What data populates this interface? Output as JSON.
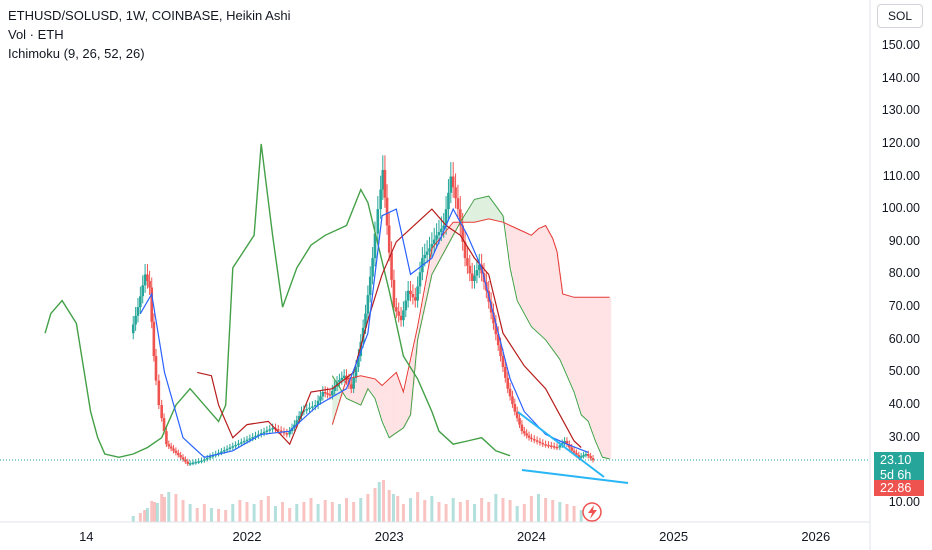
{
  "legend": {
    "title": "ETHUSD/SOLUSD, 1W, COINBASE, Heikin Ashi",
    "vol": "Vol · ETH",
    "ichimoku": "Ichimoku (9, 26, 52, 26)"
  },
  "symbol_button": "SOL",
  "price_tag": {
    "price": "23.10",
    "countdown": "5d 6h",
    "low": "22.86"
  },
  "colors": {
    "up": "#26a69a",
    "down": "#ef5350",
    "conversion": "#2962ff",
    "base": "#b71c1c",
    "lagging": "#43a047",
    "lead_a": "#43a047",
    "lead_b": "#e53935",
    "trend": "#29b6f6",
    "tag_green": "#26a69a",
    "tag_red": "#ef5350"
  },
  "chart_data": {
    "type": "candlestick",
    "y_ticks": [
      "10.00",
      "20.00",
      "30.00",
      "40.00",
      "50.00",
      "60.00",
      "70.00",
      "80.00",
      "90.00",
      "100.00",
      "110.00",
      "120.00",
      "130.00",
      "140.00",
      "150.00"
    ],
    "x_ticks": [
      "14",
      "2022",
      "2023",
      "2024",
      "2025",
      "2026"
    ],
    "ylim": [
      6,
      157
    ],
    "close_path": [
      [
        2021.2,
        62
      ],
      [
        2021.25,
        70
      ],
      [
        2021.3,
        80
      ],
      [
        2021.33,
        76
      ],
      [
        2021.36,
        55
      ],
      [
        2021.4,
        40
      ],
      [
        2021.45,
        28
      ],
      [
        2021.5,
        26
      ],
      [
        2021.55,
        24
      ],
      [
        2021.6,
        22
      ],
      [
        2021.7,
        23
      ],
      [
        2021.8,
        25
      ],
      [
        2021.9,
        27
      ],
      [
        2022.0,
        29
      ],
      [
        2022.1,
        31
      ],
      [
        2022.2,
        33
      ],
      [
        2022.3,
        31
      ],
      [
        2022.35,
        34
      ],
      [
        2022.4,
        38
      ],
      [
        2022.5,
        40
      ],
      [
        2022.55,
        44
      ],
      [
        2022.6,
        43
      ],
      [
        2022.65,
        47
      ],
      [
        2022.7,
        49
      ],
      [
        2022.75,
        45
      ],
      [
        2022.8,
        55
      ],
      [
        2022.85,
        68
      ],
      [
        2022.9,
        85
      ],
      [
        2022.94,
        100
      ],
      [
        2022.97,
        112
      ],
      [
        2023.0,
        95
      ],
      [
        2023.05,
        70
      ],
      [
        2023.1,
        66
      ],
      [
        2023.15,
        75
      ],
      [
        2023.2,
        72
      ],
      [
        2023.25,
        85
      ],
      [
        2023.3,
        88
      ],
      [
        2023.35,
        92
      ],
      [
        2023.4,
        95
      ],
      [
        2023.45,
        110
      ],
      [
        2023.5,
        100
      ],
      [
        2023.55,
        85
      ],
      [
        2023.6,
        78
      ],
      [
        2023.65,
        83
      ],
      [
        2023.7,
        75
      ],
      [
        2023.75,
        65
      ],
      [
        2023.8,
        55
      ],
      [
        2023.85,
        45
      ],
      [
        2023.9,
        38
      ],
      [
        2023.95,
        32
      ],
      [
        2024.0,
        30
      ],
      [
        2024.1,
        28
      ],
      [
        2024.2,
        27
      ],
      [
        2024.25,
        29
      ],
      [
        2024.3,
        26
      ],
      [
        2024.35,
        24
      ],
      [
        2024.4,
        25
      ],
      [
        2024.45,
        23.1
      ]
    ],
    "conversion_line": [
      [
        2021.25,
        68
      ],
      [
        2021.33,
        74
      ],
      [
        2021.42,
        50
      ],
      [
        2021.55,
        30
      ],
      [
        2021.7,
        24
      ],
      [
        2021.9,
        26
      ],
      [
        2022.1,
        31
      ],
      [
        2022.3,
        32
      ],
      [
        2022.5,
        40
      ],
      [
        2022.7,
        45
      ],
      [
        2022.85,
        62
      ],
      [
        2022.95,
        98
      ],
      [
        2023.05,
        100
      ],
      [
        2023.15,
        80
      ],
      [
        2023.3,
        85
      ],
      [
        2023.45,
        100
      ],
      [
        2023.55,
        92
      ],
      [
        2023.65,
        82
      ],
      [
        2023.75,
        65
      ],
      [
        2023.85,
        48
      ],
      [
        2023.95,
        38
      ],
      [
        2024.1,
        31
      ],
      [
        2024.25,
        28
      ],
      [
        2024.4,
        25.5
      ]
    ],
    "base_line": [
      [
        2021.65,
        50
      ],
      [
        2021.75,
        49
      ],
      [
        2021.8,
        40
      ],
      [
        2021.9,
        30
      ],
      [
        2022.0,
        34
      ],
      [
        2022.15,
        35
      ],
      [
        2022.3,
        28
      ],
      [
        2022.45,
        44
      ],
      [
        2022.6,
        45
      ],
      [
        2022.75,
        50
      ],
      [
        2022.85,
        66
      ],
      [
        2022.95,
        80
      ],
      [
        2023.05,
        90
      ],
      [
        2023.2,
        96
      ],
      [
        2023.3,
        100
      ],
      [
        2023.4,
        95
      ],
      [
        2023.5,
        92
      ],
      [
        2023.6,
        85
      ],
      [
        2023.7,
        80
      ],
      [
        2023.8,
        62
      ],
      [
        2023.95,
        52
      ],
      [
        2024.1,
        45
      ],
      [
        2024.2,
        37
      ],
      [
        2024.3,
        29
      ],
      [
        2024.35,
        27
      ]
    ],
    "lagging_span": [
      [
        2020.58,
        62
      ],
      [
        2020.62,
        68
      ],
      [
        2020.7,
        72
      ],
      [
        2020.8,
        65
      ],
      [
        2020.9,
        38
      ],
      [
        2020.95,
        30
      ],
      [
        2021.0,
        25
      ],
      [
        2021.1,
        24
      ],
      [
        2021.2,
        25
      ],
      [
        2021.3,
        27
      ],
      [
        2021.4,
        30
      ],
      [
        2021.5,
        40
      ],
      [
        2021.6,
        45
      ],
      [
        2021.7,
        40
      ],
      [
        2021.8,
        35
      ],
      [
        2021.85,
        40
      ],
      [
        2021.9,
        82
      ],
      [
        2022.05,
        92
      ],
      [
        2022.1,
        120
      ],
      [
        2022.18,
        92
      ],
      [
        2022.25,
        70
      ],
      [
        2022.35,
        82
      ],
      [
        2022.45,
        89
      ],
      [
        2022.55,
        92
      ],
      [
        2022.7,
        95
      ],
      [
        2022.8,
        106
      ],
      [
        2022.85,
        102
      ],
      [
        2022.9,
        93
      ],
      [
        2023.0,
        75
      ],
      [
        2023.1,
        55
      ],
      [
        2023.2,
        48
      ],
      [
        2023.3,
        38
      ],
      [
        2023.35,
        32
      ],
      [
        2023.45,
        28
      ],
      [
        2023.55,
        29
      ],
      [
        2023.65,
        30
      ],
      [
        2023.75,
        26
      ],
      [
        2023.85,
        24.5
      ]
    ],
    "leading_span_a": [
      [
        2022.6,
        49
      ],
      [
        2022.7,
        42
      ],
      [
        2022.8,
        40
      ],
      [
        2022.85,
        45
      ],
      [
        2022.9,
        42
      ],
      [
        2022.95,
        35
      ],
      [
        2023.0,
        30
      ],
      [
        2023.1,
        33
      ],
      [
        2023.15,
        37
      ],
      [
        2023.2,
        60
      ],
      [
        2023.3,
        80
      ],
      [
        2023.4,
        88
      ],
      [
        2023.5,
        96
      ],
      [
        2023.6,
        103
      ],
      [
        2023.7,
        104
      ],
      [
        2023.8,
        98
      ],
      [
        2023.85,
        82
      ],
      [
        2023.9,
        72
      ],
      [
        2024.0,
        64
      ],
      [
        2024.1,
        60
      ],
      [
        2024.2,
        54
      ],
      [
        2024.3,
        44
      ],
      [
        2024.35,
        37
      ],
      [
        2024.4,
        35
      ],
      [
        2024.45,
        29
      ],
      [
        2024.5,
        24
      ],
      [
        2024.55,
        23.5
      ]
    ],
    "leading_span_b": [
      [
        2022.6,
        34
      ],
      [
        2022.7,
        48
      ],
      [
        2022.8,
        49
      ],
      [
        2022.9,
        48
      ],
      [
        2022.95,
        46
      ],
      [
        2023.0,
        48
      ],
      [
        2023.05,
        50
      ],
      [
        2023.1,
        44
      ],
      [
        2023.2,
        64
      ],
      [
        2023.3,
        88
      ],
      [
        2023.45,
        96
      ],
      [
        2023.6,
        96
      ],
      [
        2023.7,
        97
      ],
      [
        2023.8,
        96
      ],
      [
        2023.85,
        95
      ],
      [
        2023.95,
        93
      ],
      [
        2024.0,
        92
      ],
      [
        2024.05,
        94
      ],
      [
        2024.1,
        95
      ],
      [
        2024.15,
        91
      ],
      [
        2024.18,
        87
      ],
      [
        2024.22,
        74
      ],
      [
        2024.3,
        73
      ],
      [
        2024.4,
        73
      ],
      [
        2024.55,
        73
      ]
    ],
    "volume": [
      [
        2021.2,
        6
      ],
      [
        2021.25,
        9
      ],
      [
        2021.28,
        12
      ],
      [
        2021.3,
        14
      ],
      [
        2021.33,
        21
      ],
      [
        2021.35,
        20
      ],
      [
        2021.37,
        19
      ],
      [
        2021.4,
        28
      ],
      [
        2021.42,
        25
      ],
      [
        2021.45,
        30
      ],
      [
        2021.5,
        28
      ],
      [
        2021.55,
        22
      ],
      [
        2021.6,
        18
      ],
      [
        2021.65,
        14
      ],
      [
        2021.7,
        18
      ],
      [
        2021.75,
        14
      ],
      [
        2021.8,
        13
      ],
      [
        2021.85,
        12
      ],
      [
        2021.9,
        18
      ],
      [
        2021.95,
        22
      ],
      [
        2022.0,
        20
      ],
      [
        2022.05,
        18
      ],
      [
        2022.1,
        22
      ],
      [
        2022.15,
        26
      ],
      [
        2022.2,
        16
      ],
      [
        2022.25,
        20
      ],
      [
        2022.3,
        14
      ],
      [
        2022.35,
        18
      ],
      [
        2022.4,
        20
      ],
      [
        2022.45,
        24
      ],
      [
        2022.5,
        18
      ],
      [
        2022.55,
        22
      ],
      [
        2022.6,
        20
      ],
      [
        2022.65,
        18
      ],
      [
        2022.7,
        24
      ],
      [
        2022.75,
        20
      ],
      [
        2022.8,
        24
      ],
      [
        2022.85,
        28
      ],
      [
        2022.9,
        34
      ],
      [
        2022.93,
        40
      ],
      [
        2022.96,
        42
      ],
      [
        2023.0,
        32
      ],
      [
        2023.03,
        28
      ],
      [
        2023.06,
        26
      ],
      [
        2023.1,
        18
      ],
      [
        2023.15,
        24
      ],
      [
        2023.2,
        30
      ],
      [
        2023.25,
        22
      ],
      [
        2023.3,
        26
      ],
      [
        2023.35,
        20
      ],
      [
        2023.4,
        18
      ],
      [
        2023.45,
        24
      ],
      [
        2023.5,
        20
      ],
      [
        2023.55,
        22
      ],
      [
        2023.6,
        18
      ],
      [
        2023.65,
        24
      ],
      [
        2023.7,
        20
      ],
      [
        2023.75,
        28
      ],
      [
        2023.8,
        24
      ],
      [
        2023.85,
        22
      ],
      [
        2023.9,
        16
      ],
      [
        2023.95,
        18
      ],
      [
        2024.0,
        26
      ],
      [
        2024.05,
        28
      ],
      [
        2024.1,
        24
      ],
      [
        2024.15,
        22
      ],
      [
        2024.2,
        20
      ],
      [
        2024.25,
        18
      ],
      [
        2024.3,
        16
      ],
      [
        2024.35,
        12
      ],
      [
        2024.4,
        10
      ],
      [
        2024.45,
        8
      ]
    ]
  }
}
